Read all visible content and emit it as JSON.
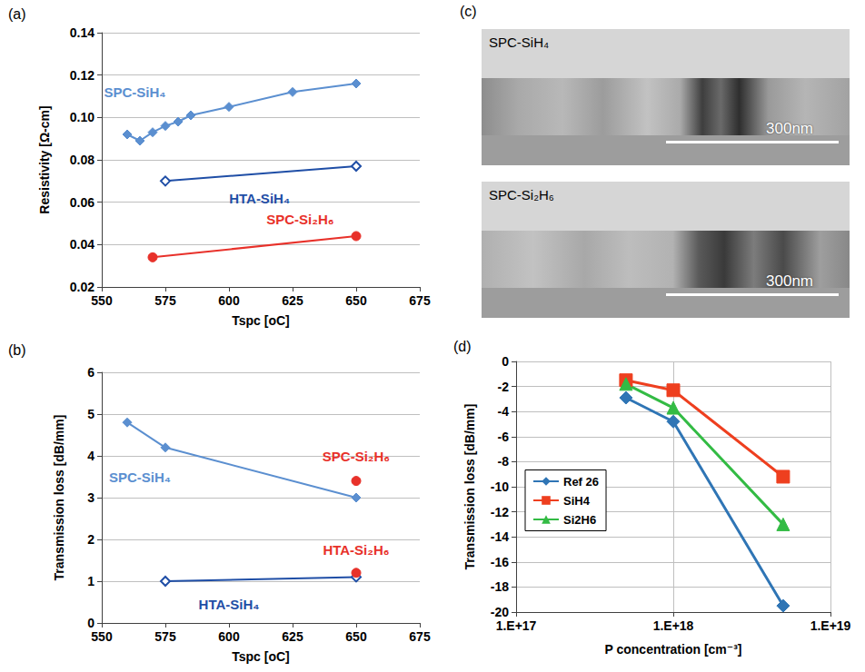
{
  "chart_data": [
    {
      "title": "(a)",
      "type": "line",
      "x_label": "Tspc [oC]",
      "y_label": "Resistivity [Ω-cm]",
      "xlim": [
        550,
        675
      ],
      "xticks": [
        550,
        575,
        600,
        625,
        650,
        675
      ],
      "ylim": [
        0.02,
        0.14
      ],
      "yticks": [
        0.02,
        0.04,
        0.06,
        0.08,
        {
          "value": 0.1,
          "label": "0.10"
        },
        0.12,
        0.14
      ],
      "grid": "y",
      "series": [
        {
          "name": "SPC-SiH₄",
          "color": "#5b8fd0",
          "marker": "diamond",
          "x": [
            560,
            565,
            570,
            575,
            580,
            585,
            600,
            625,
            650
          ],
          "values": [
            0.092,
            0.089,
            0.093,
            0.096,
            0.098,
            0.101,
            0.105,
            0.112,
            0.116
          ]
        },
        {
          "name": "HTA-SiH₄",
          "color": "#1f4ea6",
          "marker": "open_diamond",
          "x": [
            575,
            650
          ],
          "values": [
            0.07,
            0.077
          ]
        },
        {
          "name": "SPC-Si₂H₆",
          "color": "#e8312a",
          "marker": "circle",
          "x": [
            570,
            650
          ],
          "values": [
            0.034,
            0.044
          ]
        }
      ],
      "annotations": [
        {
          "text": "SPC-SiH₄",
          "x": 563,
          "y": 0.112,
          "color": "#5b8fd0"
        },
        {
          "text": "HTA-SiH₄",
          "x": 612,
          "y": 0.062,
          "color": "#1f4ea6"
        },
        {
          "text": "SPC-Si₂H₆",
          "x": 628,
          "y": 0.052,
          "color": "#e8312a"
        }
      ]
    },
    {
      "title": "(b)",
      "type": "line",
      "x_label": "Tspc [oC]",
      "y_label": "Transmission loss [dB/mm]",
      "xlim": [
        550,
        675
      ],
      "xticks": [
        550,
        575,
        600,
        625,
        650,
        675
      ],
      "ylim": [
        0,
        6
      ],
      "yticks": [
        0,
        1,
        2,
        3,
        4,
        5,
        6
      ],
      "grid": "y",
      "series": [
        {
          "name": "SPC-SiH₄",
          "color": "#5b8fd0",
          "marker": "diamond",
          "x": [
            560,
            575,
            650
          ],
          "values": [
            4.8,
            4.2,
            3.0
          ]
        },
        {
          "name": "HTA-SiH₄",
          "color": "#1f4ea6",
          "marker": "open_diamond",
          "x": [
            575,
            650
          ],
          "values": [
            1.0,
            1.1
          ]
        },
        {
          "name": "SPC-Si₂H₆",
          "color": "#e8312a",
          "marker": "circle",
          "x": [
            650
          ],
          "values": [
            3.4
          ]
        },
        {
          "name": "HTA-Si₂H₆",
          "color": "#e8312a",
          "marker": "circle",
          "x": [
            650
          ],
          "values": [
            1.2
          ]
        }
      ],
      "annotations": [
        {
          "text": "SPC-SiH₄",
          "x": 565,
          "y": 3.5,
          "color": "#5b8fd0"
        },
        {
          "text": "HTA-SiH₄",
          "x": 600,
          "y": 0.45,
          "color": "#1f4ea6"
        },
        {
          "text": "SPC-Si₂H₆",
          "x": 650,
          "y": 4.0,
          "color": "#e8312a"
        },
        {
          "text": "HTA-Si₂H₆",
          "x": 650,
          "y": 1.75,
          "color": "#e8312a"
        }
      ]
    },
    {
      "title": "(d)",
      "type": "line",
      "x_label": "P concentration [cm⁻³]",
      "y_label": "Transmission loss [dB/mm]",
      "log": "x",
      "xlim": [
        1e+17,
        1e+19
      ],
      "xticks": [
        {
          "value": 1e+17,
          "label": "1.E+17"
        },
        {
          "value": 1e+18,
          "label": "1.E+18"
        },
        {
          "value": 1e+19,
          "label": "1.E+19"
        }
      ],
      "ylim": [
        -20,
        0
      ],
      "yticks": [
        -20,
        -18,
        -16,
        -14,
        -12,
        -10,
        -8,
        -6,
        -4,
        -2,
        0
      ],
      "grid": true,
      "legend": "left",
      "x": [
        5e+17,
        1e+18,
        5e+18
      ],
      "series": [
        {
          "name": "Ref 26",
          "color": "#2f75b5",
          "marker": "diamond",
          "values": [
            -2.9,
            -4.8,
            -19.5
          ]
        },
        {
          "name": "SiH4",
          "color": "#ee3f1f",
          "marker": "square",
          "values": [
            -1.5,
            -2.3,
            -9.2
          ]
        },
        {
          "name": "Si2H6",
          "color": "#33bb44",
          "marker": "triangle",
          "values": [
            -1.8,
            -3.7,
            -13.0
          ]
        }
      ]
    }
  ],
  "image_panel": {
    "title": "(c)",
    "images": [
      {
        "label": "SPC-SiH₄",
        "scale_bar": "300nm"
      },
      {
        "label": "SPC-Si₂H₆",
        "scale_bar": "300nm"
      }
    ]
  }
}
